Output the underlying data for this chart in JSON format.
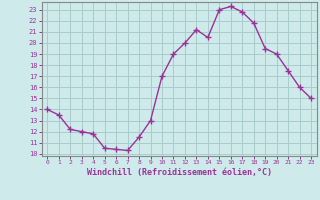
{
  "x": [
    0,
    1,
    2,
    3,
    4,
    5,
    6,
    7,
    8,
    9,
    10,
    11,
    12,
    13,
    14,
    15,
    16,
    17,
    18,
    19,
    20,
    21,
    22,
    23
  ],
  "y": [
    14.0,
    13.5,
    12.2,
    12.0,
    11.8,
    10.5,
    10.4,
    10.3,
    11.5,
    13.0,
    17.0,
    19.0,
    20.0,
    21.2,
    20.5,
    23.0,
    23.3,
    22.8,
    21.8,
    19.5,
    19.0,
    17.5,
    16.0,
    15.0
  ],
  "line_color": "#993399",
  "marker": "+",
  "bg_color": "#ceeaea",
  "grid_color": "#aacccc",
  "axis_label_color": "#993399",
  "xlabel": "Windchill (Refroidissement éolien,°C)",
  "ylim": [
    9.8,
    23.7
  ],
  "xlim": [
    -0.5,
    23.5
  ],
  "ytick_min": 10,
  "ytick_max": 23,
  "spine_color": "#888888"
}
